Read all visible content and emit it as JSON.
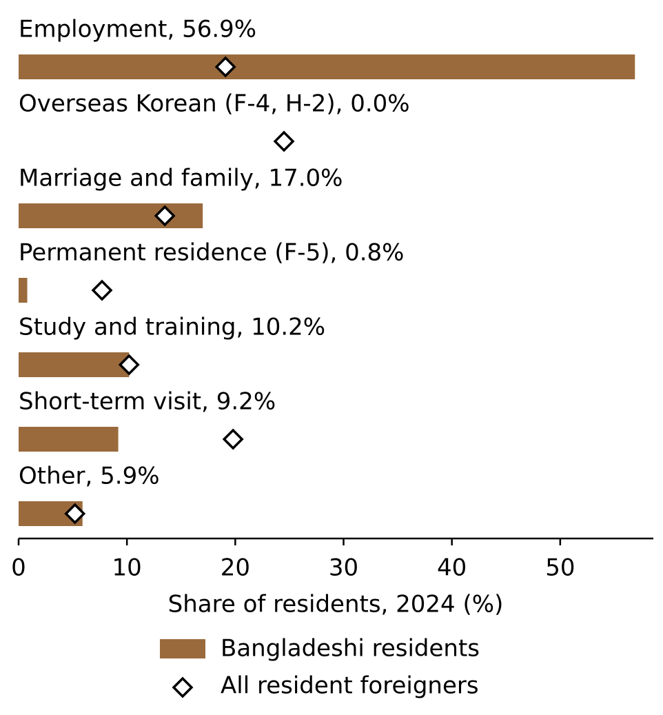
{
  "chart_data": {
    "type": "bar",
    "orientation": "horizontal",
    "categories": [
      "Employment, 56.9%",
      "Overseas Korean (F-4, H-2), 0.0%",
      "Marriage and family, 17.0%",
      "Permanent residence (F-5), 0.8%",
      "Study and training, 10.2%",
      "Short-term visit, 9.2%",
      "Other, 5.9%"
    ],
    "series": [
      {
        "name": "Bangladeshi residents",
        "color": "#9a6a3c",
        "marker": "bar",
        "values": [
          56.9,
          0.0,
          17.0,
          0.8,
          10.2,
          9.2,
          5.9
        ]
      },
      {
        "name": "All resident foreigners",
        "color": "#000000",
        "marker": "diamond",
        "values": [
          19.1,
          24.5,
          13.5,
          7.7,
          10.2,
          19.8,
          5.2
        ]
      }
    ],
    "xlabel": "Share of residents, 2024 (%)",
    "xlim": [
      0,
      58.6
    ],
    "xticks": [
      0,
      10,
      20,
      30,
      40,
      50
    ],
    "legend": "bottom"
  }
}
